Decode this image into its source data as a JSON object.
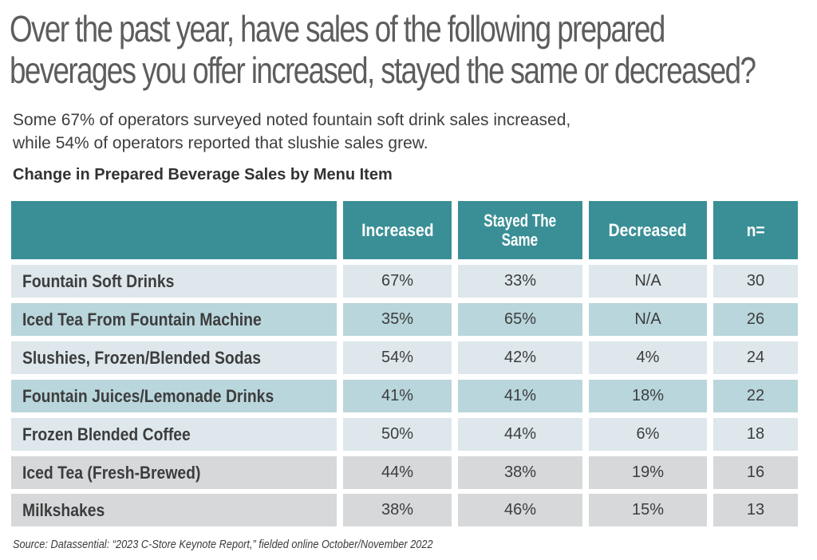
{
  "title": {
    "line1": "Over the past year, have sales of the following prepared",
    "line2": "beverages you offer increased, stayed the same or decreased?"
  },
  "subtitle": {
    "line1": "Some 67% of operators surveyed noted fountain soft drink sales increased,",
    "line2": "while 54% of operators reported that slushie sales grew."
  },
  "table_title": "Change in Prepared Beverage Sales by Menu Item",
  "colors": {
    "header": "#3a8f96",
    "row_light": "#dde7ec",
    "row_teal": "#b9d6dc",
    "row_grey": "#d6d8da"
  },
  "table": {
    "headers": [
      "",
      "Increased",
      "Stayed The Same",
      "Decreased",
      "n="
    ],
    "header_stayed_line1": "Stayed The",
    "header_stayed_line2": "Same",
    "rows": [
      {
        "item": "Fountain Soft Drinks",
        "increased": "67%",
        "same": "33%",
        "decreased": "N/A",
        "n": "30",
        "style": "light"
      },
      {
        "item": "Iced Tea From Fountain Machine",
        "increased": "35%",
        "same": "65%",
        "decreased": "N/A",
        "n": "26",
        "style": "teal"
      },
      {
        "item": "Slushies, Frozen/Blended Sodas",
        "increased": "54%",
        "same": "42%",
        "decreased": "4%",
        "n": "24",
        "style": "light"
      },
      {
        "item": "Fountain Juices/Lemonade Drinks",
        "increased": "41%",
        "same": "41%",
        "decreased": "18%",
        "n": "22",
        "style": "teal"
      },
      {
        "item": "Frozen Blended Coffee",
        "increased": "50%",
        "same": "44%",
        "decreased": "6%",
        "n": "18",
        "style": "light"
      },
      {
        "item": "Iced Tea (Fresh-Brewed)",
        "increased": "44%",
        "same": "38%",
        "decreased": "19%",
        "n": "16",
        "style": "grey"
      },
      {
        "item": "Milkshakes",
        "increased": "38%",
        "same": "46%",
        "decreased": "15%",
        "n": "13",
        "style": "grey"
      }
    ]
  },
  "source": "Source: Datassential: “2023 C-Store Keynote Report,” fielded online October/November 2022"
}
